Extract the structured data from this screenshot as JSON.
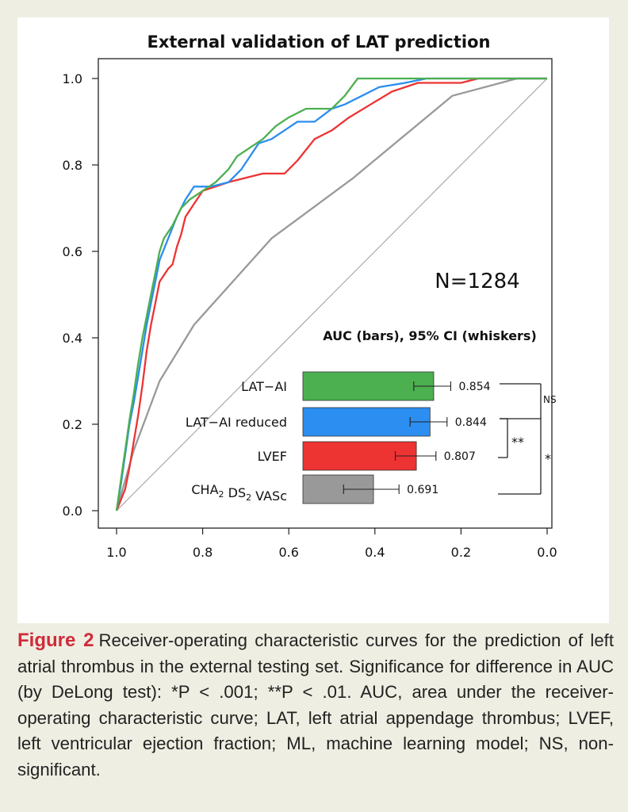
{
  "chart_data": {
    "type": "line",
    "title": "External validation of LAT prediction",
    "annotation": "N=1284",
    "xlabel": "",
    "ylabel": "",
    "xlim": [
      1.0,
      0.0
    ],
    "ylim": [
      0.0,
      1.0
    ],
    "x_ticks": [
      "1.0",
      "0.8",
      "0.6",
      "0.4",
      "0.2",
      "0.0"
    ],
    "y_ticks": [
      "0.0",
      "0.2",
      "0.4",
      "0.6",
      "0.8",
      "1.0"
    ],
    "diagonal_reference": true,
    "series": [
      {
        "name": "LAT−AI",
        "color": "#4caf50",
        "points": [
          [
            1.0,
            0.0
          ],
          [
            0.99,
            0.07
          ],
          [
            0.98,
            0.14
          ],
          [
            0.97,
            0.21
          ],
          [
            0.96,
            0.27
          ],
          [
            0.95,
            0.34
          ],
          [
            0.94,
            0.4
          ],
          [
            0.93,
            0.45
          ],
          [
            0.92,
            0.5
          ],
          [
            0.91,
            0.55
          ],
          [
            0.9,
            0.6
          ],
          [
            0.89,
            0.63
          ],
          [
            0.87,
            0.66
          ],
          [
            0.85,
            0.7
          ],
          [
            0.83,
            0.72
          ],
          [
            0.8,
            0.74
          ],
          [
            0.77,
            0.76
          ],
          [
            0.74,
            0.79
          ],
          [
            0.72,
            0.82
          ],
          [
            0.69,
            0.84
          ],
          [
            0.66,
            0.86
          ],
          [
            0.63,
            0.89
          ],
          [
            0.6,
            0.91
          ],
          [
            0.56,
            0.93
          ],
          [
            0.5,
            0.93
          ],
          [
            0.47,
            0.96
          ],
          [
            0.44,
            1.0
          ],
          [
            0.3,
            1.0
          ],
          [
            0.0,
            1.0
          ]
        ]
      },
      {
        "name": "LAT−AI reduced",
        "color": "#2b8ef0",
        "points": [
          [
            1.0,
            0.0
          ],
          [
            0.99,
            0.06
          ],
          [
            0.98,
            0.13
          ],
          [
            0.97,
            0.2
          ],
          [
            0.96,
            0.25
          ],
          [
            0.95,
            0.31
          ],
          [
            0.94,
            0.37
          ],
          [
            0.93,
            0.43
          ],
          [
            0.92,
            0.48
          ],
          [
            0.91,
            0.53
          ],
          [
            0.9,
            0.58
          ],
          [
            0.88,
            0.63
          ],
          [
            0.86,
            0.68
          ],
          [
            0.84,
            0.72
          ],
          [
            0.82,
            0.75
          ],
          [
            0.78,
            0.75
          ],
          [
            0.74,
            0.76
          ],
          [
            0.71,
            0.79
          ],
          [
            0.69,
            0.82
          ],
          [
            0.67,
            0.85
          ],
          [
            0.64,
            0.86
          ],
          [
            0.61,
            0.88
          ],
          [
            0.58,
            0.9
          ],
          [
            0.54,
            0.9
          ],
          [
            0.5,
            0.93
          ],
          [
            0.47,
            0.94
          ],
          [
            0.43,
            0.96
          ],
          [
            0.39,
            0.98
          ],
          [
            0.33,
            0.99
          ],
          [
            0.28,
            1.0
          ],
          [
            0.0,
            1.0
          ]
        ]
      },
      {
        "name": "LVEF",
        "color": "#ee3333",
        "points": [
          [
            1.0,
            0.0
          ],
          [
            0.98,
            0.05
          ],
          [
            0.97,
            0.1
          ],
          [
            0.96,
            0.16
          ],
          [
            0.95,
            0.22
          ],
          [
            0.94,
            0.29
          ],
          [
            0.93,
            0.37
          ],
          [
            0.92,
            0.43
          ],
          [
            0.91,
            0.48
          ],
          [
            0.9,
            0.53
          ],
          [
            0.88,
            0.56
          ],
          [
            0.87,
            0.57
          ],
          [
            0.86,
            0.61
          ],
          [
            0.85,
            0.64
          ],
          [
            0.84,
            0.68
          ],
          [
            0.82,
            0.71
          ],
          [
            0.8,
            0.74
          ],
          [
            0.77,
            0.75
          ],
          [
            0.74,
            0.76
          ],
          [
            0.7,
            0.77
          ],
          [
            0.66,
            0.78
          ],
          [
            0.61,
            0.78
          ],
          [
            0.58,
            0.81
          ],
          [
            0.54,
            0.86
          ],
          [
            0.52,
            0.87
          ],
          [
            0.5,
            0.88
          ],
          [
            0.46,
            0.91
          ],
          [
            0.41,
            0.94
          ],
          [
            0.36,
            0.97
          ],
          [
            0.3,
            0.99
          ],
          [
            0.2,
            0.99
          ],
          [
            0.16,
            1.0
          ],
          [
            0.0,
            1.0
          ]
        ]
      },
      {
        "name": "CHA2 DS2 VASc",
        "color": "#999999",
        "points": [
          [
            1.0,
            0.0
          ],
          [
            0.96,
            0.14
          ],
          [
            0.93,
            0.22
          ],
          [
            0.9,
            0.3
          ],
          [
            0.82,
            0.43
          ],
          [
            0.64,
            0.63
          ],
          [
            0.45,
            0.77
          ],
          [
            0.22,
            0.96
          ],
          [
            0.07,
            1.0
          ],
          [
            0.0,
            1.0
          ]
        ]
      }
    ],
    "inset_bar": {
      "title": "AUC (bars), 95% CI (whiskers)",
      "categories": [
        "LAT−AI",
        "LAT−AI reduced",
        "LVEF",
        "CHA2 DS2 VASc"
      ],
      "values": [
        0.854,
        0.844,
        0.807,
        0.691
      ],
      "value_labels": [
        "0.854",
        "0.844",
        "0.807",
        "0.691"
      ],
      "ci_low": [
        0.8,
        0.79,
        0.75,
        0.61
      ],
      "ci_high": [
        0.9,
        0.89,
        0.86,
        0.76
      ],
      "colors": [
        "#4caf50",
        "#2b8ef0",
        "#ee3333",
        "#999999"
      ],
      "significance": [
        {
          "pair": [
            "LAT−AI",
            "LAT−AI reduced"
          ],
          "label": "NS"
        },
        {
          "pair": [
            "LAT−AI reduced",
            "LVEF"
          ],
          "label": "**"
        },
        {
          "pair": [
            "LAT−AI reduced",
            "CHA2 DS2 VASc"
          ],
          "label": "*"
        }
      ]
    }
  },
  "caption": {
    "figure_label": "Figure 2",
    "text": "Receiver-operating characteristic curves for the prediction of left atrial thrombus in the external testing set. Significance for difference in AUC (by DeLong test): *P < .001; **P < .01. AUC, area under the receiver-operating characteristic curve; LAT, left atrial appendage thrombus; LVEF, left ventricular ejection fraction; ML, machine learning model; NS, non-significant."
  }
}
